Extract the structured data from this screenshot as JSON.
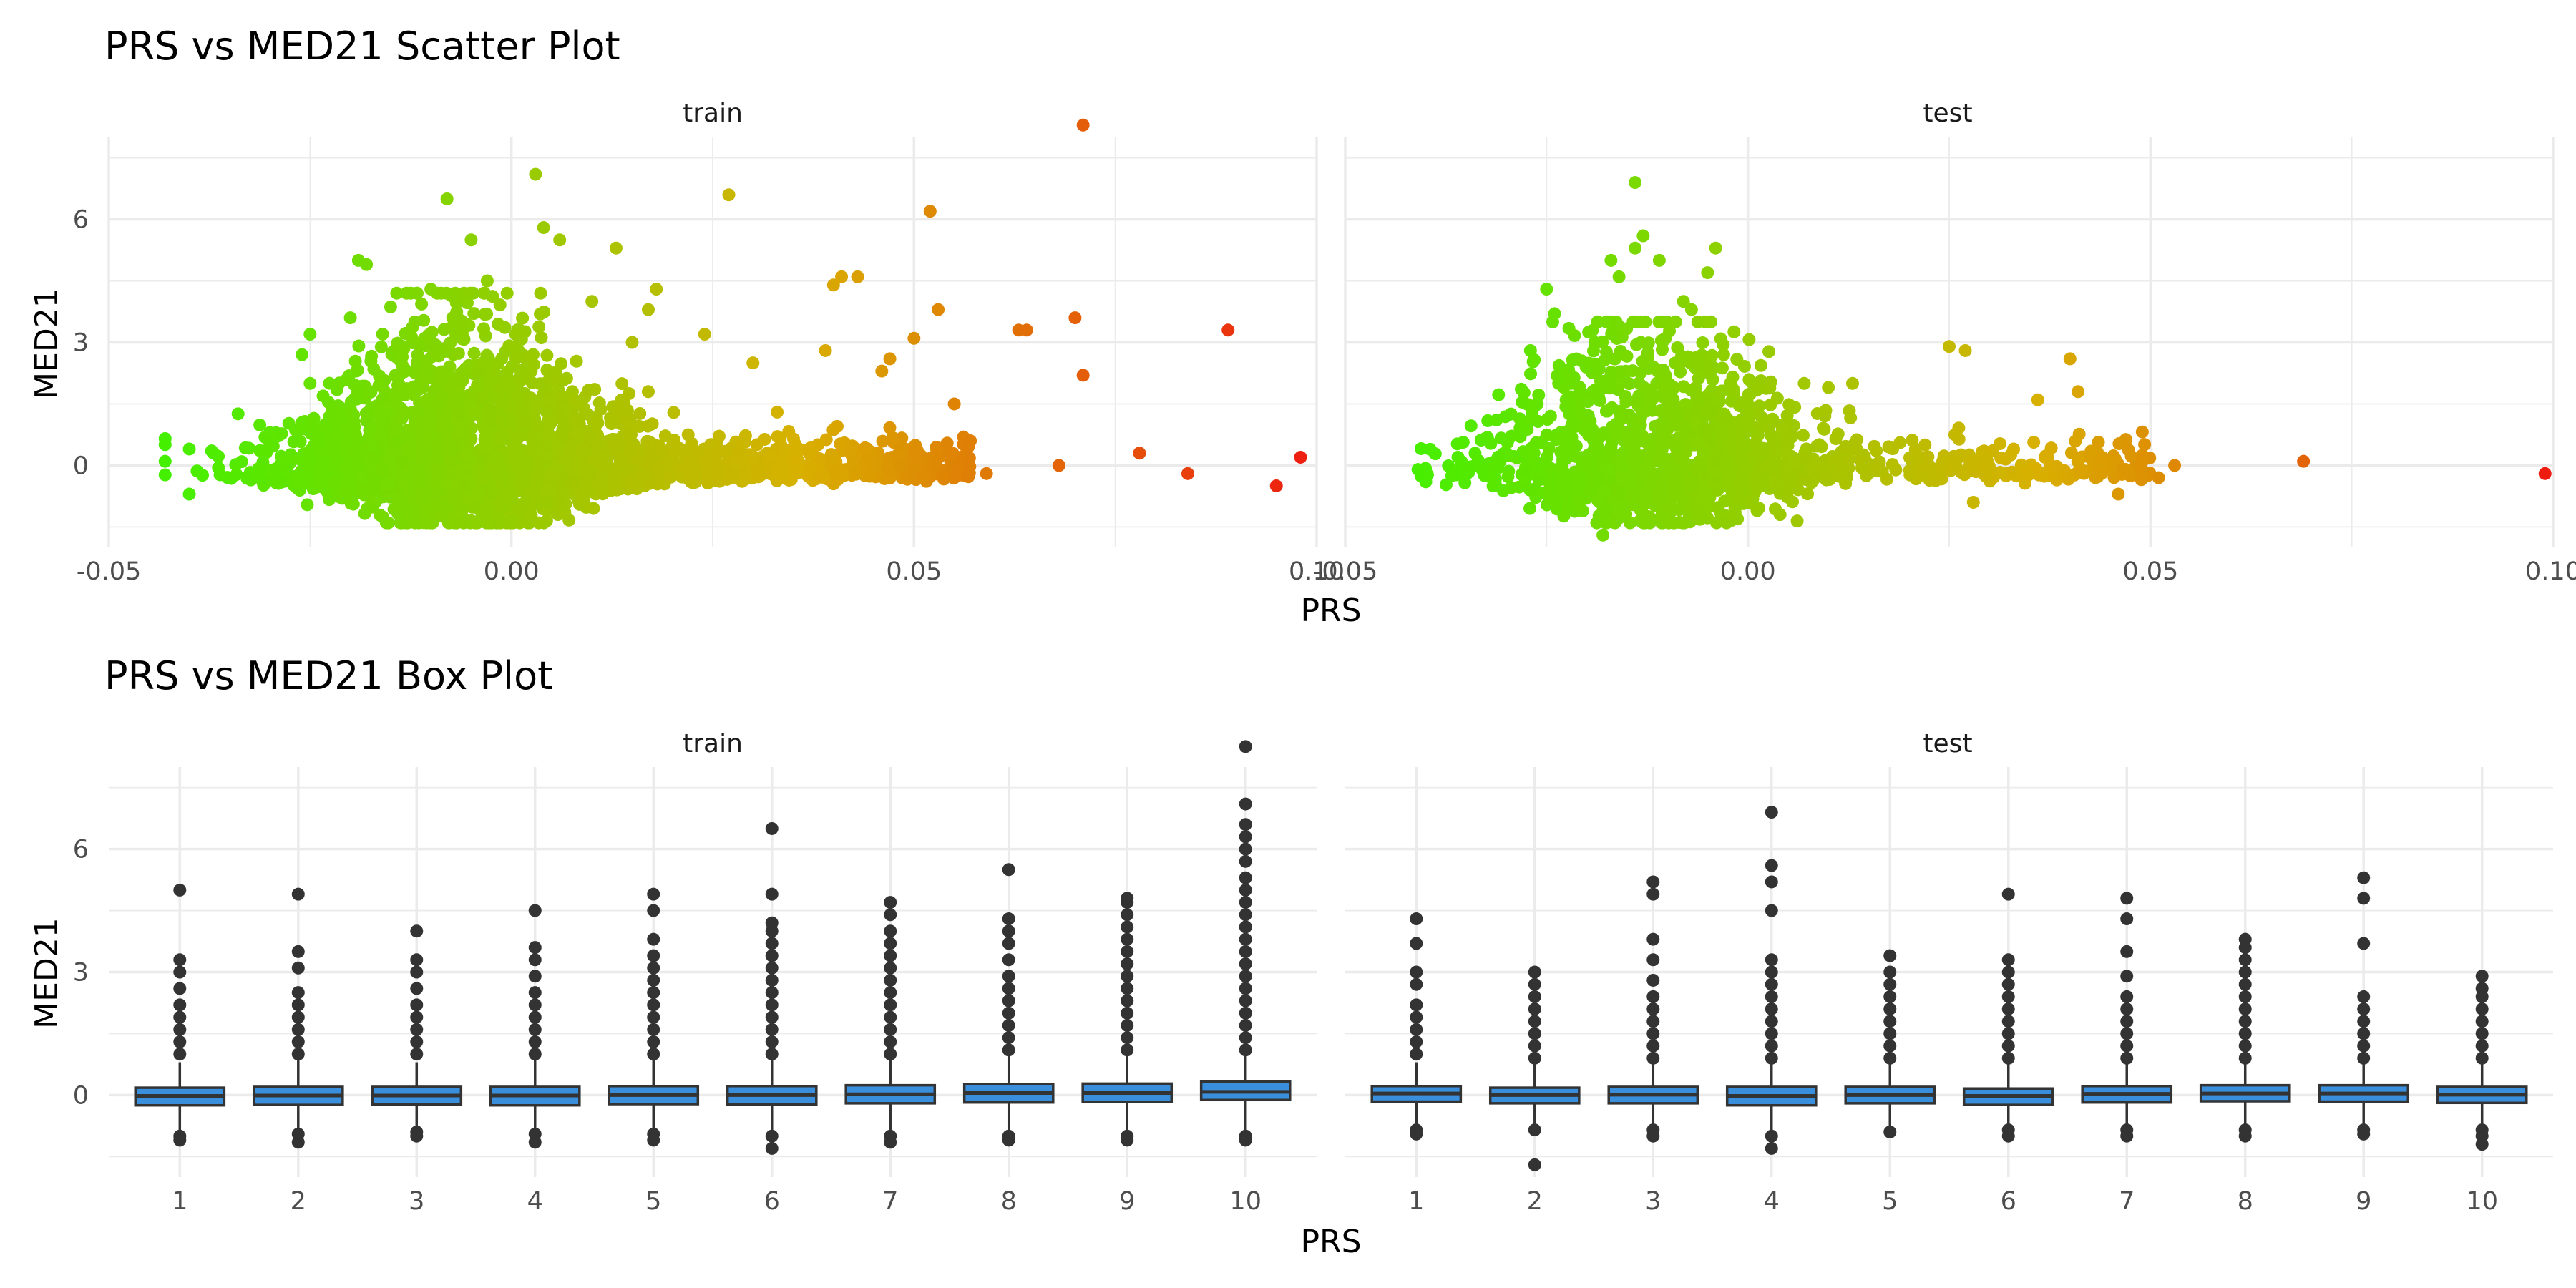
{
  "chart_data": [
    {
      "type": "scatter",
      "title": "PRS vs MED21 Scatter Plot",
      "xlabel": "PRS",
      "ylabel": "MED21",
      "facets": [
        "train",
        "test"
      ],
      "xlim": [
        -0.05,
        0.1
      ],
      "ylim": [
        -2,
        8
      ],
      "x_ticks": [
        "-0.05",
        "0.00",
        "0.05",
        "0.10"
      ],
      "y_ticks": [
        "0",
        "3",
        "6"
      ],
      "color_gradient": {
        "low": "#44f000",
        "mid": "#d8b000",
        "high": "#ee1a10"
      },
      "grid": true,
      "series": [
        {
          "name": "train",
          "points": [
            [
              -0.043,
              0.1
            ],
            [
              -0.04,
              -0.7
            ],
            [
              -0.04,
              0.4
            ],
            [
              -0.037,
              0.3
            ],
            [
              -0.03,
              0.8
            ],
            [
              -0.026,
              2.7
            ],
            [
              -0.025,
              3.2
            ],
            [
              -0.025,
              2.0
            ],
            [
              -0.02,
              3.6
            ],
            [
              -0.019,
              5.0
            ],
            [
              -0.018,
              4.9
            ],
            [
              -0.016,
              3.2
            ],
            [
              -0.012,
              3.5
            ],
            [
              -0.01,
              4.3
            ],
            [
              -0.008,
              6.5
            ],
            [
              -0.005,
              5.5
            ],
            [
              -0.003,
              4.5
            ],
            [
              0.003,
              7.1
            ],
            [
              0.004,
              5.8
            ],
            [
              0.006,
              5.5
            ],
            [
              0.01,
              4.0
            ],
            [
              0.013,
              5.3
            ],
            [
              0.015,
              3.0
            ],
            [
              0.017,
              3.8
            ],
            [
              0.017,
              1.8
            ],
            [
              0.018,
              4.3
            ],
            [
              0.024,
              3.2
            ],
            [
              0.027,
              6.6
            ],
            [
              0.03,
              2.5
            ],
            [
              0.033,
              1.3
            ],
            [
              0.039,
              2.8
            ],
            [
              0.04,
              4.4
            ],
            [
              0.041,
              4.6
            ],
            [
              0.043,
              4.6
            ],
            [
              0.046,
              2.3
            ],
            [
              0.047,
              2.6
            ],
            [
              0.05,
              3.1
            ],
            [
              0.052,
              6.2
            ],
            [
              0.053,
              3.8
            ],
            [
              0.055,
              1.5
            ],
            [
              0.057,
              0.6
            ],
            [
              0.059,
              -0.2
            ],
            [
              0.063,
              3.3
            ],
            [
              0.064,
              3.3
            ],
            [
              0.068,
              0.0
            ],
            [
              0.07,
              3.6
            ],
            [
              0.071,
              2.2
            ],
            [
              0.071,
              8.3
            ],
            [
              0.078,
              0.3
            ],
            [
              0.084,
              -0.2
            ],
            [
              0.089,
              3.3
            ],
            [
              0.095,
              -0.5
            ],
            [
              0.098,
              0.2
            ]
          ]
        },
        {
          "name": "test",
          "points": [
            [
              -0.04,
              -0.4
            ],
            [
              -0.036,
              0.2
            ],
            [
              -0.033,
              -0.1
            ],
            [
              -0.027,
              2.8
            ],
            [
              -0.025,
              4.3
            ],
            [
              -0.024,
              3.7
            ],
            [
              -0.022,
              2.0
            ],
            [
              -0.019,
              3.0
            ],
            [
              -0.018,
              -1.7
            ],
            [
              -0.017,
              5.0
            ],
            [
              -0.016,
              4.6
            ],
            [
              -0.014,
              5.3
            ],
            [
              -0.014,
              6.9
            ],
            [
              -0.013,
              5.6
            ],
            [
              -0.012,
              -1.3
            ],
            [
              -0.011,
              5.0
            ],
            [
              -0.008,
              4.0
            ],
            [
              -0.007,
              3.8
            ],
            [
              -0.005,
              4.7
            ],
            [
              -0.004,
              5.3
            ],
            [
              -0.003,
              2.7
            ],
            [
              0.0,
              1.3
            ],
            [
              0.004,
              -1.2
            ],
            [
              0.007,
              2.0
            ],
            [
              0.01,
              1.9
            ],
            [
              0.013,
              2.0
            ],
            [
              0.022,
              0.5
            ],
            [
              0.025,
              2.9
            ],
            [
              0.027,
              2.8
            ],
            [
              0.028,
              -0.9
            ],
            [
              0.033,
              0.4
            ],
            [
              0.036,
              1.6
            ],
            [
              0.04,
              2.6
            ],
            [
              0.041,
              1.8
            ],
            [
              0.044,
              0.2
            ],
            [
              0.046,
              -0.7
            ],
            [
              0.049,
              0.1
            ],
            [
              0.051,
              -0.3
            ],
            [
              0.053,
              0.0
            ],
            [
              0.069,
              0.1
            ],
            [
              0.099,
              -0.2
            ]
          ]
        }
      ]
    },
    {
      "type": "box",
      "title": "PRS vs MED21 Box Plot",
      "xlabel": "PRS",
      "ylabel": "MED21",
      "facets": [
        "train",
        "test"
      ],
      "categories": [
        "1",
        "2",
        "3",
        "4",
        "5",
        "6",
        "7",
        "8",
        "9",
        "10"
      ],
      "ylim": [
        -2,
        8
      ],
      "y_ticks": [
        "0",
        "3",
        "6"
      ],
      "box_fill": "#3a8fdc",
      "grid": true,
      "series": [
        {
          "name": "train",
          "boxes": [
            {
              "q1": -0.25,
              "median": -0.02,
              "q3": 0.18,
              "whisker_low": -0.85,
              "whisker_high": 0.8,
              "outliers_high": [
                1.0,
                1.3,
                1.6,
                1.9,
                2.2,
                2.6,
                3.0,
                3.3,
                5.0
              ],
              "outliers_low": [
                -1.0,
                -1.1
              ]
            },
            {
              "q1": -0.24,
              "median": -0.01,
              "q3": 0.2,
              "whisker_low": -0.85,
              "whisker_high": 0.85,
              "outliers_high": [
                1.0,
                1.3,
                1.6,
                1.9,
                2.2,
                2.5,
                3.1,
                3.5,
                4.9
              ],
              "outliers_low": [
                -0.95,
                -1.15
              ]
            },
            {
              "q1": -0.23,
              "median": -0.01,
              "q3": 0.2,
              "whisker_low": -0.8,
              "whisker_high": 0.8,
              "outliers_high": [
                1.0,
                1.3,
                1.6,
                1.9,
                2.2,
                2.6,
                3.0,
                3.3,
                4.0
              ],
              "outliers_low": [
                -0.9,
                -1.0
              ]
            },
            {
              "q1": -0.25,
              "median": -0.01,
              "q3": 0.2,
              "whisker_low": -0.85,
              "whisker_high": 0.85,
              "outliers_high": [
                1.0,
                1.3,
                1.6,
                1.9,
                2.2,
                2.5,
                2.9,
                3.3,
                3.6,
                4.5
              ],
              "outliers_low": [
                -0.95,
                -1.15
              ]
            },
            {
              "q1": -0.22,
              "median": 0.0,
              "q3": 0.22,
              "whisker_low": -0.85,
              "whisker_high": 0.85,
              "outliers_high": [
                1.0,
                1.3,
                1.6,
                1.9,
                2.2,
                2.5,
                2.8,
                3.1,
                3.4,
                3.8,
                4.5,
                4.9
              ],
              "outliers_low": [
                -0.95,
                -1.1
              ]
            },
            {
              "q1": -0.23,
              "median": 0.0,
              "q3": 0.22,
              "whisker_low": -0.85,
              "whisker_high": 0.85,
              "outliers_high": [
                1.0,
                1.3,
                1.6,
                1.9,
                2.2,
                2.5,
                2.8,
                3.1,
                3.4,
                3.7,
                4.0,
                4.2,
                4.9,
                6.5
              ],
              "outliers_low": [
                -1.0,
                -1.3
              ]
            },
            {
              "q1": -0.2,
              "median": 0.02,
              "q3": 0.24,
              "whisker_low": -0.85,
              "whisker_high": 0.9,
              "outliers_high": [
                1.0,
                1.3,
                1.6,
                1.9,
                2.2,
                2.5,
                2.8,
                3.1,
                3.4,
                3.7,
                4.0,
                4.4,
                4.7
              ],
              "outliers_low": [
                -1.0,
                -1.15
              ]
            },
            {
              "q1": -0.18,
              "median": 0.05,
              "q3": 0.27,
              "whisker_low": -0.85,
              "whisker_high": 0.95,
              "outliers_high": [
                1.1,
                1.4,
                1.7,
                2.0,
                2.3,
                2.6,
                2.9,
                3.3,
                3.7,
                4.0,
                4.3,
                5.5
              ],
              "outliers_low": [
                -1.0,
                -1.1
              ]
            },
            {
              "q1": -0.17,
              "median": 0.05,
              "q3": 0.28,
              "whisker_low": -0.85,
              "whisker_high": 0.95,
              "outliers_high": [
                1.1,
                1.4,
                1.7,
                2.0,
                2.3,
                2.6,
                2.9,
                3.2,
                3.5,
                3.8,
                4.1,
                4.4,
                4.7,
                4.8
              ],
              "outliers_low": [
                -1.0,
                -1.1
              ]
            },
            {
              "q1": -0.12,
              "median": 0.08,
              "q3": 0.33,
              "whisker_low": -0.85,
              "whisker_high": 1.0,
              "outliers_high": [
                1.1,
                1.4,
                1.7,
                2.0,
                2.3,
                2.6,
                2.9,
                3.2,
                3.5,
                3.8,
                4.1,
                4.4,
                4.7,
                5.0,
                5.3,
                5.7,
                6.0,
                6.3,
                6.6,
                7.1,
                8.5
              ],
              "outliers_low": [
                -1.0,
                -1.1
              ]
            }
          ]
        },
        {
          "name": "test",
          "boxes": [
            {
              "q1": -0.16,
              "median": 0.04,
              "q3": 0.22,
              "whisker_low": -0.8,
              "whisker_high": 0.8,
              "outliers_high": [
                1.0,
                1.3,
                1.6,
                1.9,
                2.2,
                2.7,
                3.0,
                3.7,
                4.3
              ],
              "outliers_low": [
                -0.85,
                -0.95
              ]
            },
            {
              "q1": -0.2,
              "median": 0.0,
              "q3": 0.18,
              "whisker_low": -0.8,
              "whisker_high": 0.75,
              "outliers_high": [
                0.9,
                1.2,
                1.5,
                1.8,
                2.1,
                2.4,
                2.7,
                3.0
              ],
              "outliers_low": [
                -0.85,
                -1.7
              ]
            },
            {
              "q1": -0.2,
              "median": 0.01,
              "q3": 0.2,
              "whisker_low": -0.8,
              "whisker_high": 0.8,
              "outliers_high": [
                0.9,
                1.2,
                1.5,
                1.8,
                2.1,
                2.4,
                2.8,
                3.3,
                3.8,
                4.9,
                5.2
              ],
              "outliers_low": [
                -0.85,
                -1.0
              ]
            },
            {
              "q1": -0.25,
              "median": -0.02,
              "q3": 0.2,
              "whisker_low": -0.85,
              "whisker_high": 0.8,
              "outliers_high": [
                0.9,
                1.2,
                1.5,
                1.8,
                2.1,
                2.4,
                2.7,
                3.0,
                3.3,
                4.5,
                5.2,
                5.6,
                6.9
              ],
              "outliers_low": [
                -1.0,
                -1.3
              ]
            },
            {
              "q1": -0.2,
              "median": 0.0,
              "q3": 0.2,
              "whisker_low": -0.8,
              "whisker_high": 0.75,
              "outliers_high": [
                0.9,
                1.2,
                1.5,
                1.8,
                2.1,
                2.4,
                2.7,
                3.0,
                3.4
              ],
              "outliers_low": [
                -0.9
              ]
            },
            {
              "q1": -0.24,
              "median": -0.02,
              "q3": 0.16,
              "whisker_low": -0.8,
              "whisker_high": 0.75,
              "outliers_high": [
                0.9,
                1.2,
                1.5,
                1.8,
                2.1,
                2.4,
                2.7,
                3.0,
                3.3,
                4.9
              ],
              "outliers_low": [
                -0.85,
                -1.0
              ]
            },
            {
              "q1": -0.18,
              "median": 0.03,
              "q3": 0.22,
              "whisker_low": -0.8,
              "whisker_high": 0.8,
              "outliers_high": [
                0.9,
                1.2,
                1.5,
                1.8,
                2.1,
                2.4,
                2.9,
                3.5,
                4.3,
                4.8
              ],
              "outliers_low": [
                -0.85,
                -1.0
              ]
            },
            {
              "q1": -0.15,
              "median": 0.04,
              "q3": 0.24,
              "whisker_low": -0.8,
              "whisker_high": 0.85,
              "outliers_high": [
                0.9,
                1.2,
                1.5,
                1.8,
                2.1,
                2.4,
                2.7,
                3.0,
                3.3,
                3.6,
                3.8
              ],
              "outliers_low": [
                -0.85,
                -1.0
              ]
            },
            {
              "q1": -0.16,
              "median": 0.04,
              "q3": 0.24,
              "whisker_low": -0.8,
              "whisker_high": 0.85,
              "outliers_high": [
                0.9,
                1.2,
                1.5,
                1.8,
                2.1,
                2.4,
                3.7,
                4.8,
                5.3
              ],
              "outliers_low": [
                -0.85,
                -0.95
              ]
            },
            {
              "q1": -0.19,
              "median": 0.01,
              "q3": 0.2,
              "whisker_low": -0.8,
              "whisker_high": 0.8,
              "outliers_high": [
                0.9,
                1.2,
                1.5,
                1.8,
                2.1,
                2.4,
                2.6,
                2.9
              ],
              "outliers_low": [
                -0.85,
                -1.0,
                -1.2
              ]
            }
          ]
        }
      ]
    }
  ]
}
